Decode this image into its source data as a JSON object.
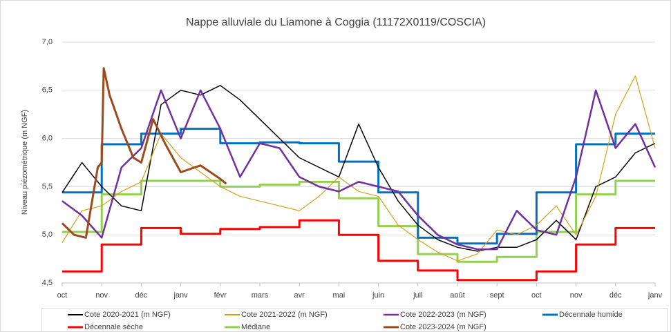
{
  "chart_data": {
    "type": "line",
    "title": "Nappe alluviale du Liamone à Coggia (11172X0119/COSCIA)",
    "y_label": "Niveau piézométrique (m NGF)",
    "xlim": [
      0,
      15
    ],
    "xticks": [
      {
        "value": 0,
        "label": "oct"
      },
      {
        "value": 1,
        "label": "nov"
      },
      {
        "value": 2,
        "label": "déc"
      },
      {
        "value": 3,
        "label": "janv"
      },
      {
        "value": 4,
        "label": "févr"
      },
      {
        "value": 5,
        "label": "mars"
      },
      {
        "value": 6,
        "label": "avr"
      },
      {
        "value": 7,
        "label": "mai"
      },
      {
        "value": 8,
        "label": "juin"
      },
      {
        "value": 9,
        "label": "juil"
      },
      {
        "value": 10,
        "label": "août"
      },
      {
        "value": 11,
        "label": "sept"
      },
      {
        "value": 12,
        "label": "oct"
      },
      {
        "value": 13,
        "label": "nov"
      },
      {
        "value": 14,
        "label": "déc"
      },
      {
        "value": 15,
        "label": "janv"
      }
    ],
    "ylim": [
      4.5,
      7
    ],
    "yticks": [
      {
        "value": 4.5,
        "label": "4,5"
      },
      {
        "value": 5,
        "label": "5,0"
      },
      {
        "value": 5.5,
        "label": "5,5"
      },
      {
        "value": 6,
        "label": "6,0"
      },
      {
        "value": 6.5,
        "label": "6,5"
      },
      {
        "value": 7,
        "label": "7,0"
      }
    ],
    "grid": true,
    "legend": "bottom",
    "series": [
      {
        "name": "Cote 2020-2021 (m NGF)",
        "color": "#000000",
        "x": [
          0,
          0.5,
          1,
          1.5,
          2,
          2.5,
          3,
          3.5,
          4,
          4.5,
          5,
          5.5,
          6,
          6.5,
          7,
          7.5,
          8,
          8.5,
          9,
          9.5,
          10,
          10.5,
          11,
          11.5,
          12,
          12.5,
          13,
          13.5,
          14,
          14.5,
          15
        ],
        "values": [
          5.44,
          5.75,
          5.5,
          5.3,
          5.25,
          6.35,
          6.5,
          6.45,
          6.55,
          6.4,
          6.2,
          6.0,
          5.8,
          5.7,
          5.6,
          6.15,
          5.7,
          5.35,
          5.1,
          4.95,
          4.87,
          4.83,
          4.87,
          4.87,
          4.95,
          5.15,
          4.95,
          5.5,
          5.6,
          5.85,
          5.95
        ]
      },
      {
        "name": "Cote 2021-2022 (m NGF)",
        "color": "#d4a017",
        "x": [
          0,
          0.5,
          1,
          1.5,
          2,
          2.5,
          3,
          3.5,
          4,
          4.5,
          5,
          5.5,
          6,
          6.5,
          7,
          7.5,
          8,
          8.5,
          9,
          9.5,
          10,
          10.5,
          11,
          11.5,
          12,
          12.5,
          13,
          13.5,
          14,
          14.5,
          15
        ],
        "values": [
          4.92,
          5.25,
          5.3,
          5.45,
          5.55,
          6.05,
          5.8,
          5.65,
          5.5,
          5.4,
          5.35,
          5.3,
          5.25,
          5.4,
          5.6,
          5.45,
          5.4,
          5.1,
          4.95,
          4.82,
          4.73,
          4.8,
          5.05,
          5.0,
          5.1,
          5.3,
          5.0,
          5.4,
          6.25,
          6.65,
          5.9
        ]
      },
      {
        "name": "Cote 2022-2023 (m NGF)",
        "color": "#7030a0",
        "x": [
          0,
          0.5,
          1,
          1.5,
          2,
          2.5,
          3,
          3.5,
          4,
          4.5,
          5,
          5.5,
          6,
          6.5,
          7,
          7.5,
          8,
          8.5,
          9,
          9.5,
          10,
          10.5,
          11,
          11.5,
          12,
          12.5,
          13,
          13.5,
          14,
          14.5,
          15
        ],
        "values": [
          5.35,
          5.2,
          4.97,
          5.7,
          5.9,
          6.5,
          6.0,
          6.5,
          6.1,
          5.6,
          5.95,
          5.9,
          5.6,
          5.5,
          5.45,
          5.55,
          5.5,
          5.45,
          5.2,
          5.0,
          4.9,
          4.85,
          4.85,
          5.25,
          5.05,
          5.0,
          5.6,
          6.5,
          5.9,
          6.15,
          5.7
        ]
      },
      {
        "name": "Décennale humide",
        "color": "#0070c0",
        "step": true,
        "x": [
          0,
          1,
          2,
          3,
          4,
          5,
          6,
          7,
          8,
          9,
          10,
          11,
          12,
          13,
          14,
          15
        ],
        "values": [
          5.44,
          5.94,
          6.05,
          6.1,
          5.95,
          5.96,
          5.95,
          5.76,
          5.44,
          4.97,
          4.91,
          5.01,
          5.44,
          5.94,
          6.05,
          6.05
        ]
      },
      {
        "name": "Décennale sèche",
        "color": "#ff0000",
        "step": true,
        "x": [
          0,
          1,
          2,
          3,
          4,
          5,
          6,
          7,
          8,
          9,
          10,
          11,
          12,
          13,
          14,
          15
        ],
        "values": [
          4.62,
          4.9,
          5.07,
          5.01,
          5.06,
          5.08,
          5.15,
          5.0,
          4.73,
          4.63,
          4.53,
          4.53,
          4.62,
          4.9,
          5.07,
          5.07
        ]
      },
      {
        "name": "Médiane",
        "color": "#92d050",
        "step": true,
        "x": [
          0,
          1,
          2,
          3,
          4,
          5,
          6,
          7,
          8,
          9,
          10,
          11,
          12,
          13,
          14,
          15
        ],
        "values": [
          5.03,
          5.42,
          5.56,
          5.56,
          5.5,
          5.52,
          5.55,
          5.38,
          5.09,
          4.8,
          4.72,
          4.77,
          5.03,
          5.42,
          5.56,
          5.56
        ]
      },
      {
        "name": "Cote 2023-2024 (m NGF)",
        "color": "#9c4a1a",
        "x": [
          0,
          0.3,
          0.6,
          0.9,
          1.0,
          1.05,
          1.2,
          1.5,
          1.8,
          2.0,
          2.3,
          2.6,
          3.0,
          3.5,
          4.0,
          4.15
        ],
        "values": [
          5.12,
          5.0,
          4.97,
          5.7,
          5.75,
          6.73,
          6.45,
          6.1,
          5.8,
          5.75,
          6.2,
          5.95,
          5.65,
          5.72,
          5.58,
          5.53
        ]
      }
    ]
  }
}
